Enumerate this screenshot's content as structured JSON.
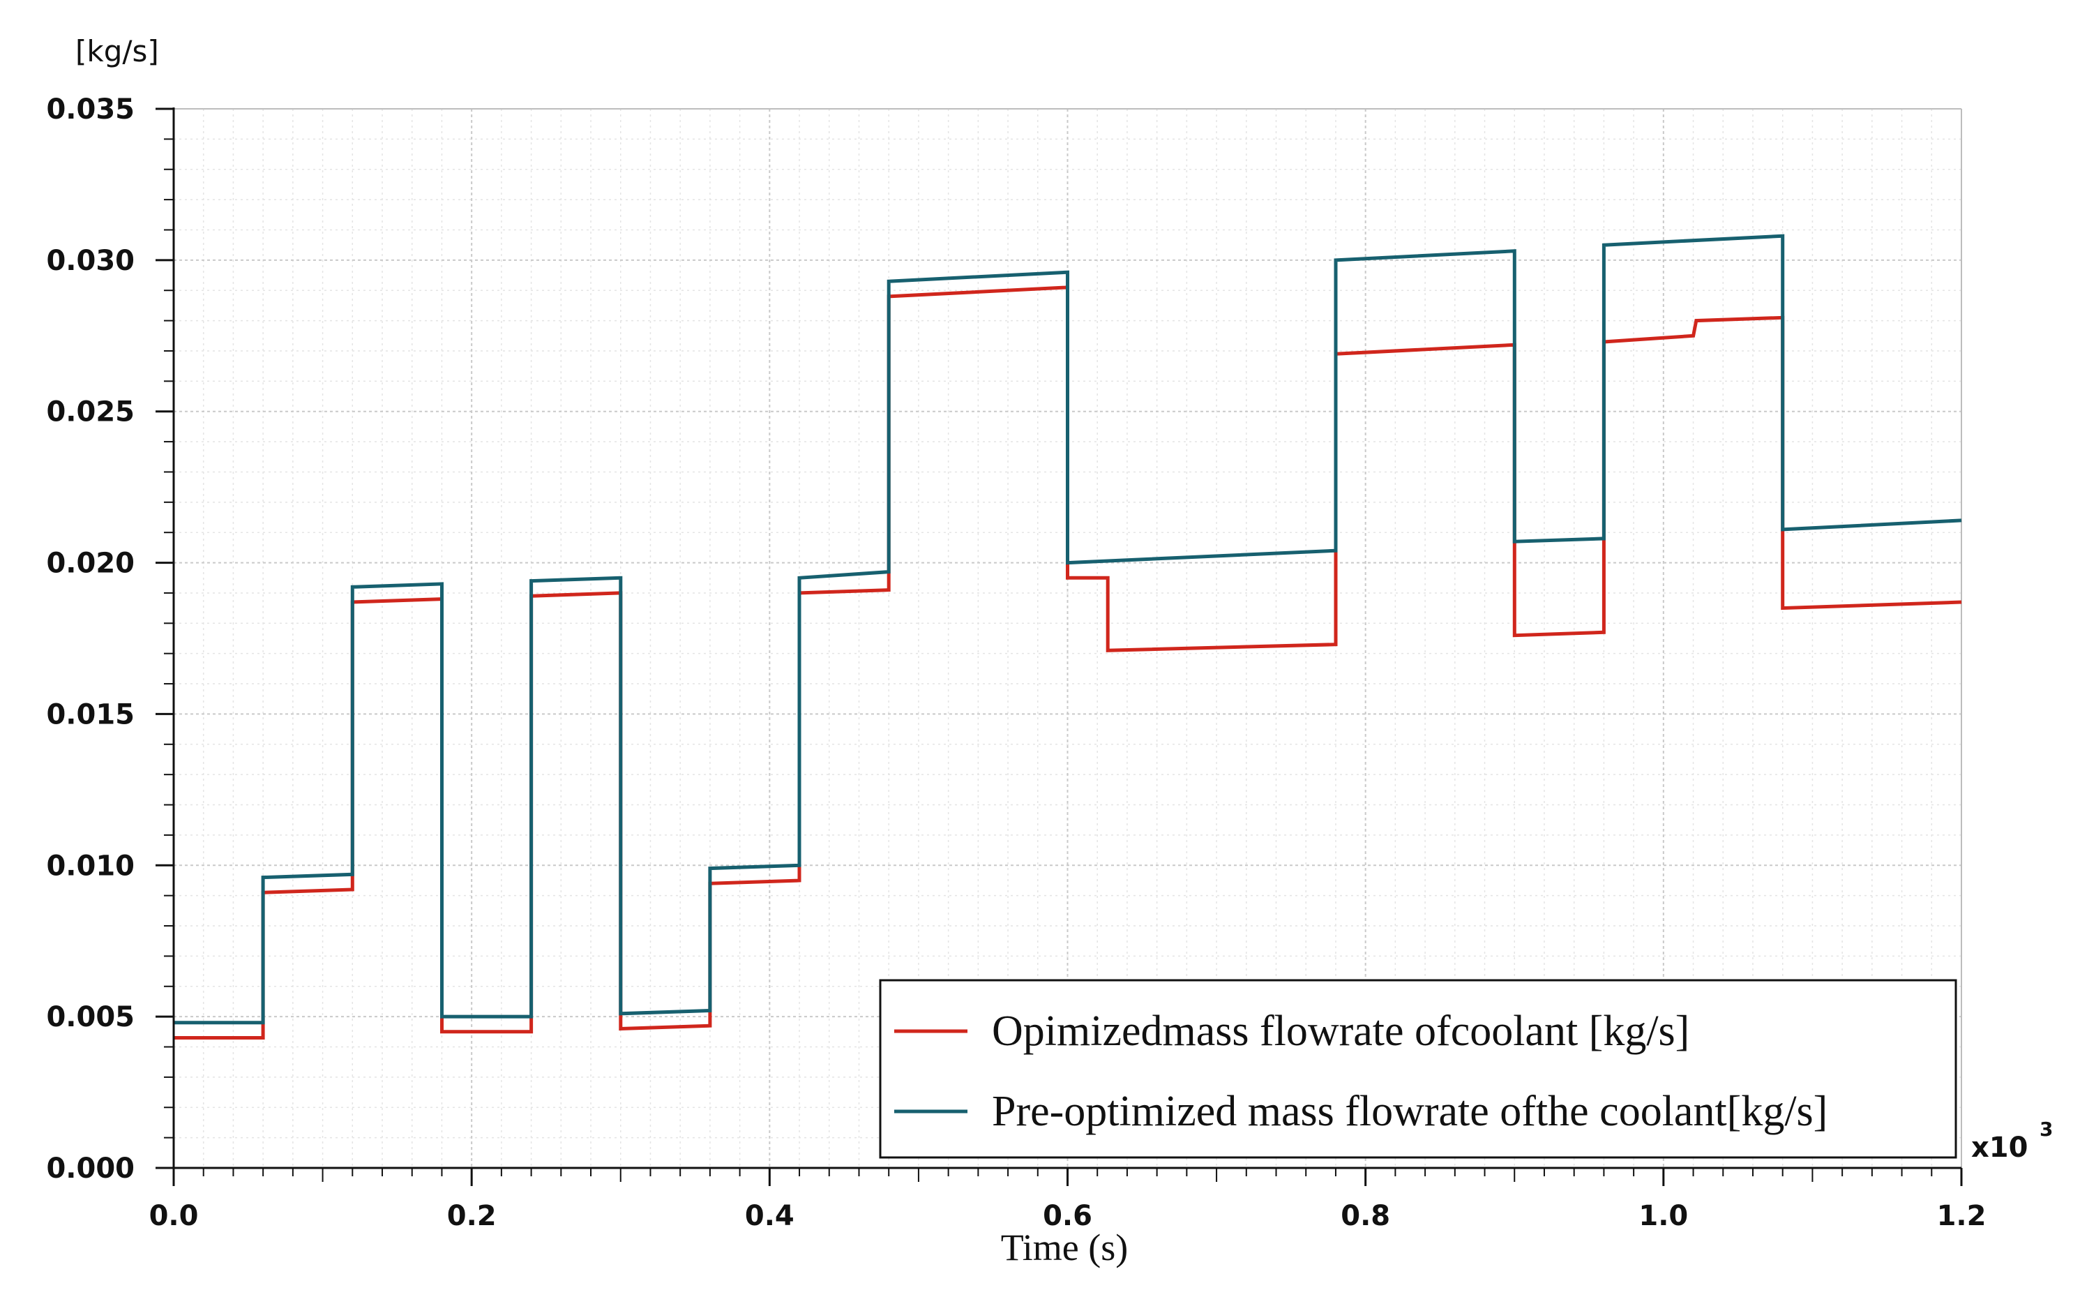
{
  "chart_data": {
    "type": "line",
    "title": "",
    "ylabel": "[kg/s]",
    "xlabel": "Time (s)",
    "x_multiplier_label": "x10",
    "x_multiplier_exp": "3",
    "xlim": [
      0,
      1.2
    ],
    "ylim": [
      0,
      0.035
    ],
    "x_ticks": [
      "0.0",
      "0.2",
      "0.4",
      "0.6",
      "0.8",
      "1.0",
      "1.2"
    ],
    "y_ticks": [
      "0.000",
      "0.005",
      "0.010",
      "0.015",
      "0.020",
      "0.025",
      "0.030",
      "0.035"
    ],
    "grid": true,
    "legend_position": "bottom-right",
    "series": [
      {
        "name": "Opimizedmass flowrate ofcoolant [kg/s]",
        "color": "#d0261c",
        "points": [
          [
            0.0,
            0.0043
          ],
          [
            0.06,
            0.0043
          ],
          [
            0.06,
            0.0091
          ],
          [
            0.12,
            0.0092
          ],
          [
            0.12,
            0.0187
          ],
          [
            0.18,
            0.0188
          ],
          [
            0.18,
            0.0045
          ],
          [
            0.24,
            0.0045
          ],
          [
            0.24,
            0.0189
          ],
          [
            0.3,
            0.019
          ],
          [
            0.3,
            0.0046
          ],
          [
            0.36,
            0.0047
          ],
          [
            0.36,
            0.0094
          ],
          [
            0.42,
            0.0095
          ],
          [
            0.42,
            0.019
          ],
          [
            0.48,
            0.0191
          ],
          [
            0.48,
            0.0288
          ],
          [
            0.6,
            0.0291
          ],
          [
            0.6,
            0.0195
          ],
          [
            0.627,
            0.0195
          ],
          [
            0.627,
            0.0171
          ],
          [
            0.78,
            0.0173
          ],
          [
            0.78,
            0.0269
          ],
          [
            0.9,
            0.0272
          ],
          [
            0.9,
            0.0176
          ],
          [
            0.96,
            0.0177
          ],
          [
            0.96,
            0.0273
          ],
          [
            1.02,
            0.0275
          ],
          [
            1.022,
            0.028
          ],
          [
            1.08,
            0.0281
          ],
          [
            1.08,
            0.0185
          ],
          [
            1.2,
            0.0187
          ]
        ]
      },
      {
        "name": "Pre-optimized mass flowrate ofthe coolant[kg/s]",
        "color": "#17606f",
        "points": [
          [
            0.0,
            0.0048
          ],
          [
            0.06,
            0.0048
          ],
          [
            0.06,
            0.0096
          ],
          [
            0.12,
            0.0097
          ],
          [
            0.12,
            0.0192
          ],
          [
            0.18,
            0.0193
          ],
          [
            0.18,
            0.005
          ],
          [
            0.24,
            0.005
          ],
          [
            0.24,
            0.0194
          ],
          [
            0.3,
            0.0195
          ],
          [
            0.3,
            0.0051
          ],
          [
            0.36,
            0.0052
          ],
          [
            0.36,
            0.0099
          ],
          [
            0.42,
            0.01
          ],
          [
            0.42,
            0.0195
          ],
          [
            0.48,
            0.0197
          ],
          [
            0.48,
            0.0293
          ],
          [
            0.6,
            0.0296
          ],
          [
            0.6,
            0.02
          ],
          [
            0.78,
            0.0204
          ],
          [
            0.78,
            0.03
          ],
          [
            0.9,
            0.0303
          ],
          [
            0.9,
            0.0207
          ],
          [
            0.96,
            0.0208
          ],
          [
            0.96,
            0.0305
          ],
          [
            1.08,
            0.0308
          ],
          [
            1.08,
            0.0211
          ],
          [
            1.2,
            0.0214
          ]
        ]
      }
    ]
  }
}
